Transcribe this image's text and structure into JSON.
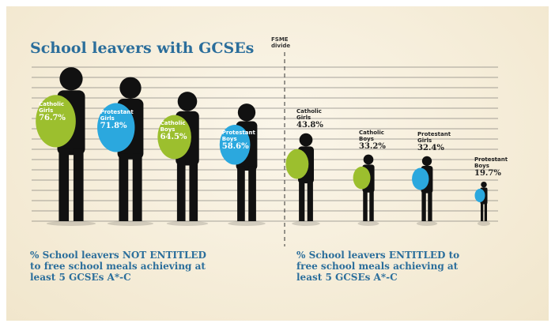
{
  "chart_data": {
    "type": "pictogram",
    "title": "School leavers with GCSEs",
    "divider_label": "FSME divide",
    "series": [
      {
        "name": "% School leavers NOT ENTITLED to free school meals achieving at least 5 GCSEs A*-C",
        "categories": [
          "Catholic Girls",
          "Protestant Girls",
          "Catholic Boys",
          "Protestant Boys"
        ],
        "values": [
          76.7,
          71.8,
          64.5,
          58.6
        ],
        "value_labels": [
          "76.7%",
          "71.8%",
          "64.5%",
          "58.6%"
        ],
        "colors": [
          "#9cbf2e",
          "#2ba8de",
          "#9cbf2e",
          "#2ba8de"
        ]
      },
      {
        "name": "% School leavers ENTITLED to free school meals achieving at least 5 GCSEs A*-C",
        "categories": [
          "Catholic Girls",
          "Catholic Boys",
          "Protestant Girls",
          "Protestant Boys"
        ],
        "values": [
          43.8,
          33.2,
          32.4,
          19.7
        ],
        "value_labels": [
          "43.8%",
          "33.2%",
          "32.4%",
          "19.7%"
        ],
        "colors": [
          "#9cbf2e",
          "#9cbf2e",
          "#2ba8de",
          "#2ba8de"
        ]
      }
    ]
  }
}
